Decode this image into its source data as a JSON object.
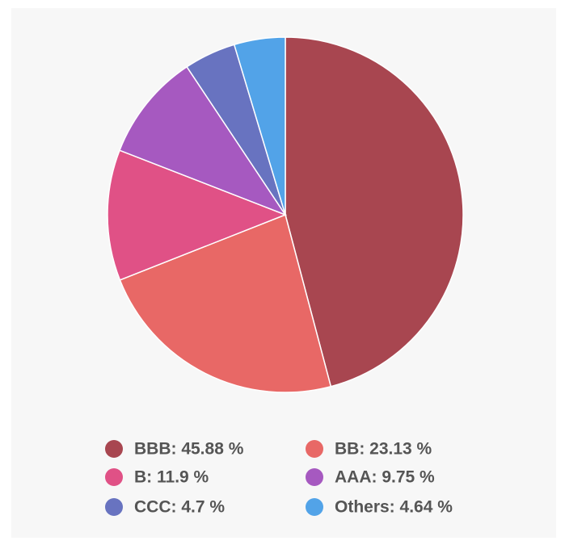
{
  "chart_data": {
    "type": "pie",
    "values": [
      45.88,
      23.13,
      11.9,
      9.75,
      4.7,
      4.64
    ],
    "value_labels": [
      "BBB: 45.88 %",
      "BB: 23.13 %",
      "B: 11.9 %",
      "AAA: 9.75 %",
      "CCC: 4.7 %",
      "Others: 4.64 %"
    ],
    "colors": [
      "#a84650",
      "#e86866",
      "#e05186",
      "#a659c0",
      "#6873c0",
      "#52a3e8"
    ],
    "legend": "bottom"
  }
}
